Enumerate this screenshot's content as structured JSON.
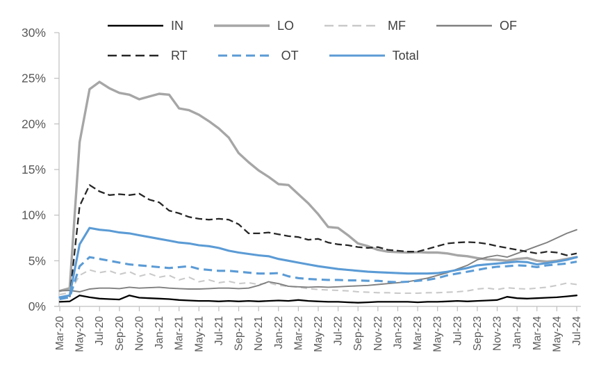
{
  "chart_data": {
    "type": "line",
    "title": "",
    "grid": "off",
    "legend_position": "top",
    "ylim": [
      0,
      30
    ],
    "y_tick_labels": [
      "0%",
      "5%",
      "10%",
      "15%",
      "20%",
      "25%",
      "30%"
    ],
    "y_tick_values": [
      0,
      5,
      10,
      15,
      20,
      25,
      30
    ],
    "x_tick_step": 2,
    "x": [
      "Mar-20",
      "Apr-20",
      "May-20",
      "Jun-20",
      "Jul-20",
      "Aug-20",
      "Sep-20",
      "Oct-20",
      "Nov-20",
      "Dec-20",
      "Jan-21",
      "Feb-21",
      "Mar-21",
      "Apr-21",
      "May-21",
      "Jun-21",
      "Jul-21",
      "Aug-21",
      "Sep-21",
      "Oct-21",
      "Nov-21",
      "Dec-21",
      "Jan-22",
      "Feb-22",
      "Mar-22",
      "Apr-22",
      "May-22",
      "Jun-22",
      "Jul-22",
      "Aug-22",
      "Sep-22",
      "Oct-22",
      "Nov-22",
      "Dec-22",
      "Jan-23",
      "Feb-23",
      "Mar-23",
      "Apr-23",
      "May-23",
      "Jun-23",
      "Jul-23",
      "Aug-23",
      "Sep-23",
      "Oct-23",
      "Nov-23",
      "Dec-23",
      "Jan-24",
      "Feb-24",
      "Mar-24",
      "Apr-24",
      "May-24",
      "Jun-24",
      "Jul-24"
    ],
    "x_tick_labels": [
      "Mar-20",
      "May-20",
      "Jul-20",
      "Sep-20",
      "Nov-20",
      "Jan-21",
      "Mar-21",
      "May-21",
      "Jul-21",
      "Sep-21",
      "Nov-21",
      "Jan-22",
      "Mar-22",
      "May-22",
      "Jul-22",
      "Sep-22",
      "Nov-22",
      "Jan-23",
      "Mar-23",
      "May-23",
      "Jul-23",
      "Sep-23",
      "Nov-23",
      "Jan-24",
      "Mar-24",
      "May-24",
      "Jul-24"
    ],
    "axis_text_color": "#595959",
    "axis_line_color": "#bfbfbf",
    "accent_blue": "#5b9bd5",
    "series": [
      {
        "name": "IN",
        "color": "#000000",
        "style": "solid",
        "width": 2.3,
        "dash": "",
        "values": [
          0.5,
          0.55,
          1.2,
          1.0,
          0.85,
          0.8,
          0.75,
          1.2,
          0.95,
          0.9,
          0.85,
          0.8,
          0.7,
          0.65,
          0.6,
          0.6,
          0.55,
          0.6,
          0.55,
          0.6,
          0.55,
          0.6,
          0.65,
          0.6,
          0.7,
          0.6,
          0.55,
          0.5,
          0.5,
          0.45,
          0.4,
          0.45,
          0.5,
          0.5,
          0.5,
          0.5,
          0.45,
          0.5,
          0.5,
          0.55,
          0.6,
          0.55,
          0.6,
          0.65,
          0.7,
          1.05,
          0.9,
          0.85,
          0.9,
          0.95,
          1.0,
          1.1,
          1.2
        ]
      },
      {
        "name": "LO",
        "color": "#a6a6a6",
        "style": "solid",
        "width": 3.4,
        "dash": "",
        "values": [
          1.7,
          2.0,
          18.0,
          23.8,
          24.6,
          23.9,
          23.4,
          23.2,
          22.7,
          23.0,
          23.3,
          23.2,
          21.7,
          21.5,
          21.0,
          20.3,
          19.5,
          18.5,
          16.8,
          15.8,
          14.9,
          14.2,
          13.4,
          13.3,
          12.3,
          11.3,
          10.1,
          8.7,
          8.6,
          7.8,
          6.9,
          6.6,
          6.2,
          6.0,
          5.95,
          5.9,
          5.95,
          5.9,
          5.9,
          5.8,
          5.6,
          5.5,
          5.3,
          5.15,
          5.1,
          5.0,
          5.2,
          5.3,
          5.0,
          4.9,
          5.0,
          5.2,
          5.4
        ]
      },
      {
        "name": "MF",
        "color": "#c9c9c9",
        "style": "dashed",
        "width": 2.1,
        "dash": "9 6",
        "values": [
          1.3,
          1.5,
          3.4,
          4.0,
          3.7,
          3.9,
          3.5,
          3.8,
          3.3,
          3.6,
          3.2,
          3.4,
          2.9,
          3.2,
          2.7,
          2.9,
          2.6,
          2.75,
          2.5,
          2.6,
          2.4,
          2.6,
          2.3,
          2.2,
          2.1,
          1.95,
          1.85,
          1.8,
          1.75,
          1.7,
          1.6,
          1.55,
          1.5,
          1.5,
          1.45,
          1.45,
          1.45,
          1.5,
          1.5,
          1.55,
          1.6,
          1.7,
          1.9,
          2.0,
          1.85,
          2.05,
          1.95,
          1.9,
          2.0,
          2.1,
          2.3,
          2.55,
          2.4
        ]
      },
      {
        "name": "OF",
        "color": "#7f7f7f",
        "style": "solid",
        "width": 1.9,
        "dash": "",
        "values": [
          1.7,
          1.75,
          1.6,
          1.9,
          2.0,
          2.0,
          1.95,
          2.1,
          2.0,
          2.05,
          2.1,
          2.0,
          1.95,
          1.9,
          1.9,
          1.95,
          2.0,
          2.0,
          1.95,
          2.0,
          2.3,
          2.7,
          2.5,
          2.2,
          2.15,
          2.1,
          2.15,
          2.1,
          2.15,
          2.2,
          2.25,
          2.3,
          2.4,
          2.5,
          2.6,
          2.7,
          2.9,
          3.1,
          3.4,
          3.7,
          4.1,
          4.5,
          5.1,
          5.4,
          5.6,
          5.4,
          5.8,
          6.2,
          6.6,
          7.0,
          7.5,
          8.0,
          8.4
        ]
      },
      {
        "name": "RT",
        "color": "#262626",
        "style": "dashed",
        "width": 2.3,
        "dash": "10 5",
        "values": [
          0.8,
          1.0,
          11.0,
          13.3,
          12.6,
          12.2,
          12.3,
          12.2,
          12.35,
          11.7,
          11.4,
          10.5,
          10.2,
          9.8,
          9.6,
          9.5,
          9.6,
          9.5,
          9.0,
          8.0,
          8.0,
          8.1,
          7.9,
          7.7,
          7.6,
          7.3,
          7.4,
          7.0,
          6.8,
          6.7,
          6.5,
          6.4,
          6.5,
          6.2,
          6.1,
          6.0,
          6.0,
          6.3,
          6.6,
          6.9,
          7.0,
          7.05,
          7.0,
          6.85,
          6.6,
          6.4,
          6.2,
          6.0,
          5.8,
          6.0,
          5.9,
          5.6,
          5.8
        ]
      },
      {
        "name": "OT",
        "color": "#5b9bd5",
        "style": "dashed",
        "width": 3.1,
        "dash": "12 7",
        "values": [
          0.8,
          1.0,
          4.4,
          5.4,
          5.2,
          5.0,
          4.8,
          4.6,
          4.5,
          4.4,
          4.3,
          4.2,
          4.3,
          4.4,
          4.1,
          4.0,
          3.9,
          3.9,
          3.8,
          3.7,
          3.6,
          3.6,
          3.65,
          3.3,
          3.1,
          3.0,
          2.95,
          2.9,
          2.9,
          2.85,
          2.85,
          2.8,
          2.8,
          2.7,
          2.65,
          2.7,
          2.8,
          2.9,
          3.1,
          3.4,
          3.6,
          3.8,
          4.0,
          4.2,
          4.35,
          4.4,
          4.5,
          4.45,
          4.3,
          4.5,
          4.6,
          4.7,
          4.9
        ]
      },
      {
        "name": "Total",
        "color": "#5b9bd5",
        "style": "solid",
        "width": 3.1,
        "dash": "",
        "values": [
          1.0,
          1.2,
          6.8,
          8.6,
          8.4,
          8.3,
          8.1,
          8.0,
          7.8,
          7.6,
          7.4,
          7.2,
          7.0,
          6.9,
          6.7,
          6.6,
          6.4,
          6.1,
          5.9,
          5.75,
          5.6,
          5.5,
          5.2,
          5.0,
          4.8,
          4.6,
          4.4,
          4.25,
          4.1,
          4.0,
          3.9,
          3.8,
          3.75,
          3.7,
          3.65,
          3.6,
          3.6,
          3.6,
          3.65,
          3.8,
          4.0,
          4.2,
          4.5,
          4.6,
          4.7,
          4.8,
          4.9,
          4.85,
          4.6,
          4.75,
          4.9,
          5.1,
          5.4
        ]
      }
    ]
  }
}
